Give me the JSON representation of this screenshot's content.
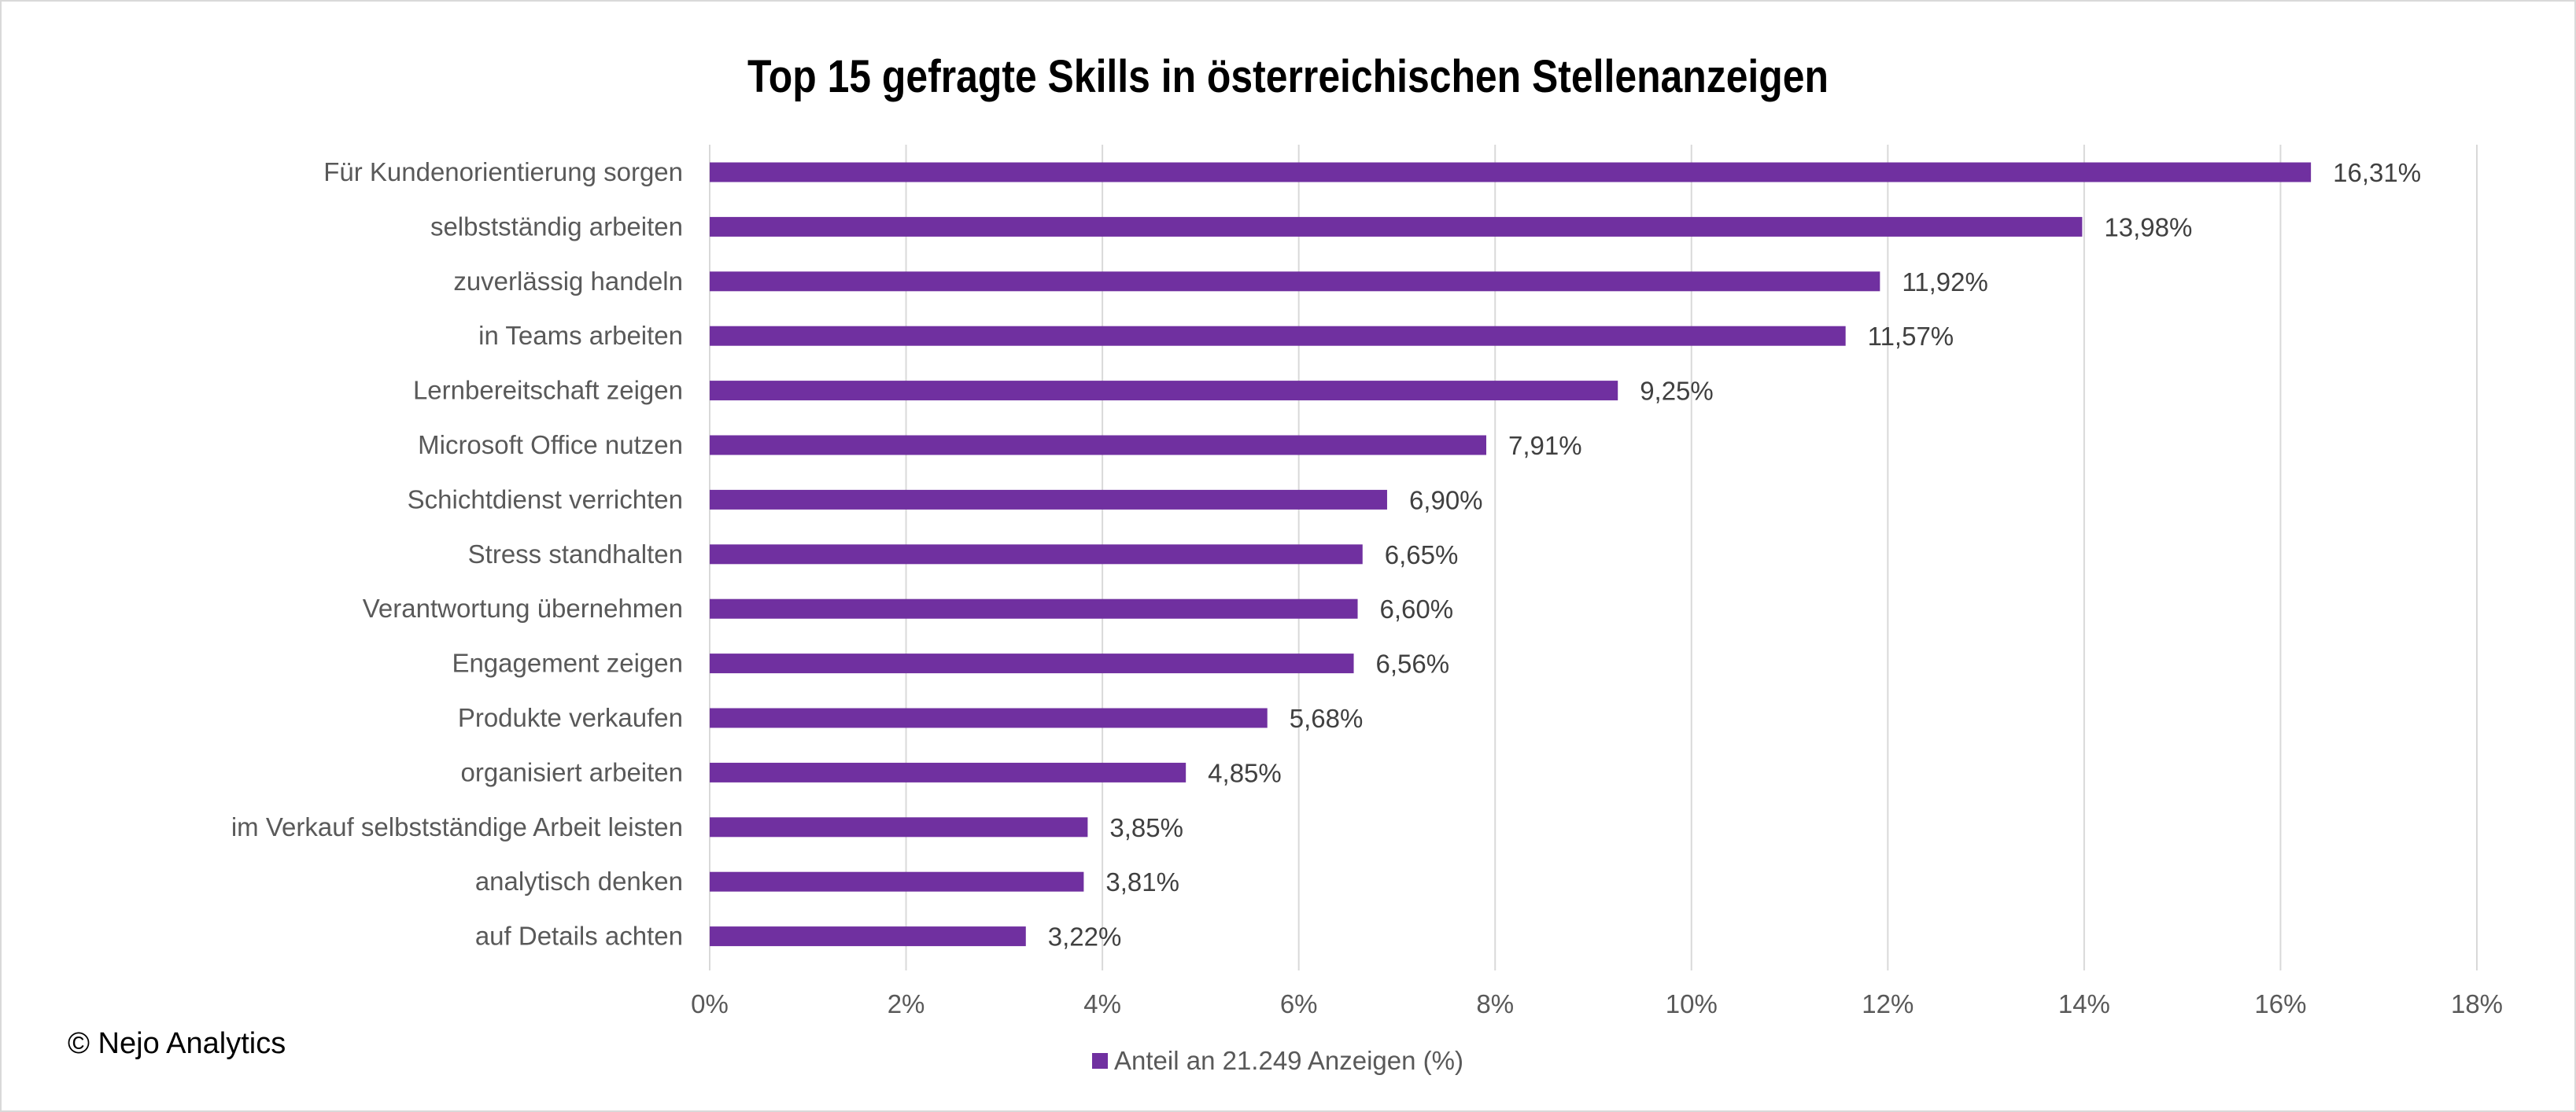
{
  "chart_data": {
    "type": "bar",
    "orientation": "horizontal",
    "title": "Top 15 gefragte Skills in österreichischen Stellenanzeigen",
    "categories": [
      "Für Kundenorientierung sorgen",
      "selbstständig arbeiten",
      "zuverlässig handeln",
      "in Teams arbeiten",
      "Lernbereitschaft zeigen",
      "Microsoft Office nutzen",
      "Schichtdienst verrichten",
      "Stress standhalten",
      "Verantwortung übernehmen",
      "Engagement zeigen",
      "Produkte verkaufen",
      "organisiert arbeiten",
      "im Verkauf selbstständige Arbeit leisten",
      "analytisch denken",
      "auf Details achten"
    ],
    "series": [
      {
        "name": "Anteil an 21.249 Anzeigen (%)",
        "values": [
          16.31,
          13.98,
          11.92,
          11.57,
          9.25,
          7.91,
          6.9,
          6.65,
          6.6,
          6.56,
          5.68,
          4.85,
          3.85,
          3.81,
          3.22
        ],
        "color": "#7030a0"
      }
    ],
    "data_labels": [
      "16,31%",
      "13,98%",
      "11,92%",
      "11,57%",
      "9,25%",
      "7,91%",
      "6,90%",
      "6,65%",
      "6,60%",
      "6,56%",
      "5,68%",
      "4,85%",
      "3,85%",
      "3,81%",
      "3,22%"
    ],
    "xlim": [
      0,
      18
    ],
    "x_ticks": [
      0,
      2,
      4,
      6,
      8,
      10,
      12,
      14,
      16,
      18
    ],
    "x_tick_labels": [
      "0%",
      "2%",
      "4%",
      "6%",
      "8%",
      "10%",
      "12%",
      "14%",
      "16%",
      "18%"
    ],
    "grid": true,
    "legend": "bottom"
  },
  "copyright": "© Nejo Analytics"
}
